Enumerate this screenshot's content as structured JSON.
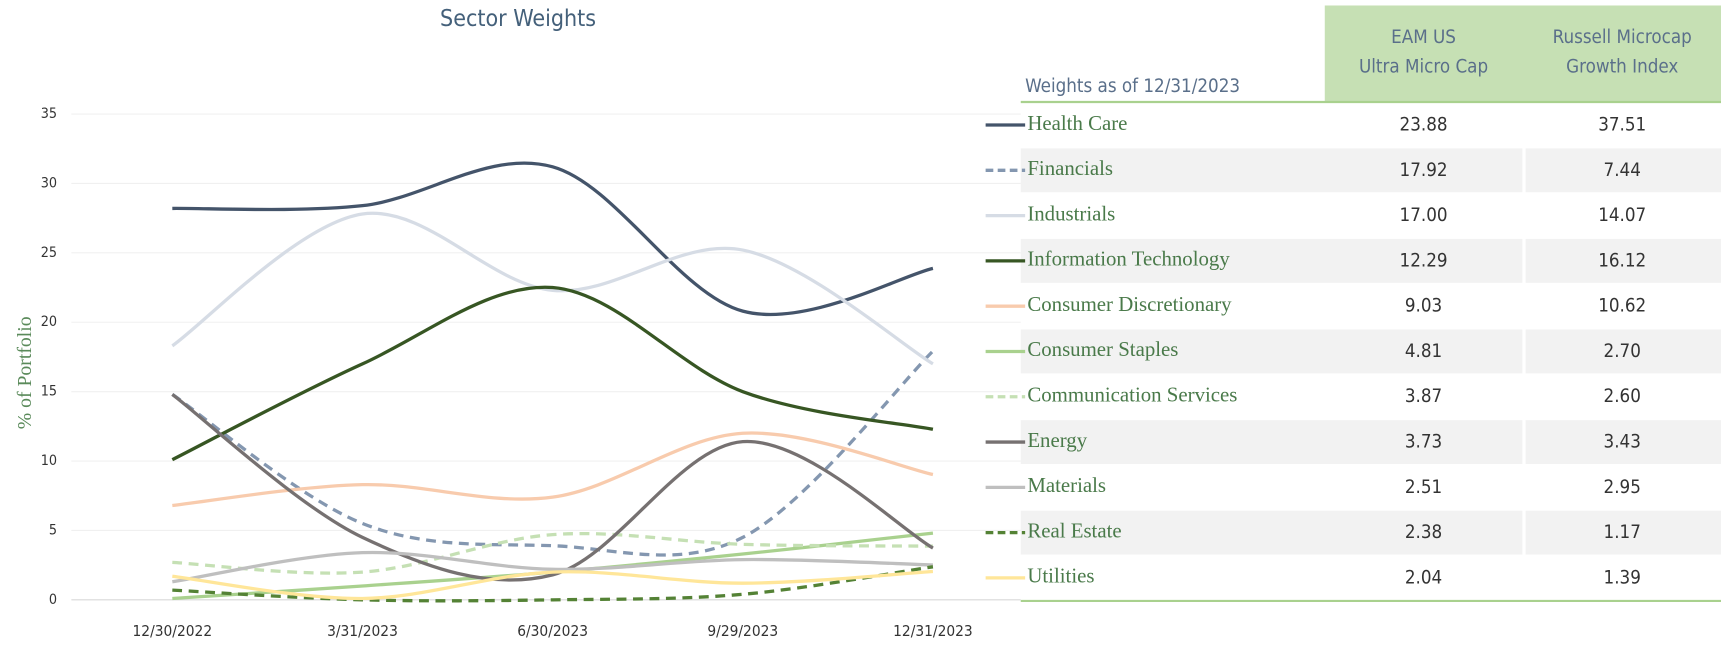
{
  "chart_data": {
    "type": "line",
    "title": "Sector Weights",
    "y_label": "% of Portfolio",
    "categories": [
      "12/30/2022",
      "3/31/2023",
      "6/30/2023",
      "9/29/2023",
      "12/31/2023"
    ],
    "ylim": [
      0,
      35
    ],
    "yticks": [
      0,
      5,
      10,
      15,
      20,
      25,
      30,
      35
    ],
    "grid": true,
    "smooth": true,
    "series": [
      {
        "name": "Health Care",
        "color": "#44546a",
        "dashed": false,
        "values": [
          28.2,
          28.4,
          31.2,
          20.8,
          23.88
        ]
      },
      {
        "name": "Financials",
        "color": "#8497b0",
        "dashed": true,
        "values": [
          14.8,
          5.5,
          3.9,
          4.5,
          17.92
        ]
      },
      {
        "name": "Industrials",
        "color": "#d6dce5",
        "dashed": false,
        "values": [
          18.3,
          27.8,
          22.3,
          25.2,
          17.0
        ]
      },
      {
        "name": "Information Technology",
        "color": "#375623",
        "dashed": false,
        "values": [
          10.1,
          17.0,
          22.5,
          15.0,
          12.29
        ]
      },
      {
        "name": "Consumer Discretionary",
        "color": "#f8cbad",
        "dashed": false,
        "values": [
          6.8,
          8.3,
          7.4,
          12.0,
          9.03
        ]
      },
      {
        "name": "Consumer Staples",
        "color": "#a9d18e",
        "dashed": false,
        "values": [
          0.1,
          1.0,
          2.0,
          3.3,
          4.81
        ]
      },
      {
        "name": "Communication Services",
        "color": "#c5e0b4",
        "dashed": true,
        "values": [
          2.7,
          2.0,
          4.7,
          4.0,
          3.87
        ]
      },
      {
        "name": "Energy",
        "color": "#767171",
        "dashed": false,
        "values": [
          14.8,
          4.5,
          1.8,
          11.4,
          3.73
        ]
      },
      {
        "name": "Materials",
        "color": "#bfbfbf",
        "dashed": false,
        "values": [
          1.3,
          3.4,
          2.2,
          2.9,
          2.51
        ]
      },
      {
        "name": "Real Estate",
        "color": "#548235",
        "dashed": true,
        "values": [
          0.7,
          0.0,
          0.0,
          0.4,
          2.38
        ]
      },
      {
        "name": "Utilities",
        "color": "#ffe699",
        "dashed": false,
        "values": [
          1.7,
          0.1,
          2.0,
          1.2,
          2.04
        ]
      }
    ]
  },
  "table": {
    "caption": "Weights as of 12/31/2023",
    "columns": [
      [
        "EAM US",
        "Ultra Micro Cap"
      ],
      [
        "Russell Microcap",
        "Growth Index"
      ]
    ],
    "rows": [
      [
        "23.88",
        "37.51"
      ],
      [
        "17.92",
        "7.44"
      ],
      [
        "17.00",
        "14.07"
      ],
      [
        "12.29",
        "16.12"
      ],
      [
        "9.03",
        "10.62"
      ],
      [
        "4.81",
        "2.70"
      ],
      [
        "3.87",
        "2.60"
      ],
      [
        "3.73",
        "3.43"
      ],
      [
        "2.51",
        "2.95"
      ],
      [
        "2.38",
        "1.17"
      ],
      [
        "2.04",
        "1.39"
      ]
    ]
  }
}
